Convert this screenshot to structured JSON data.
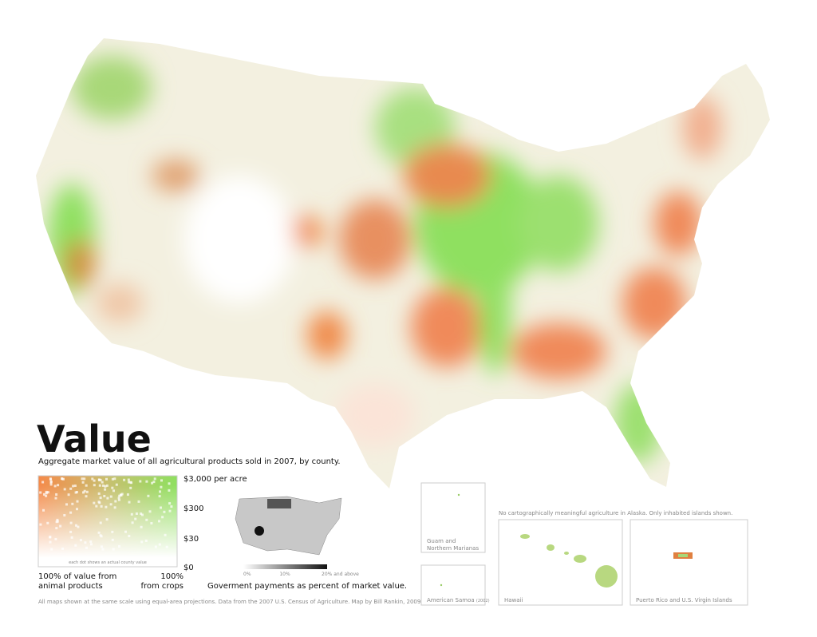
{
  "title": "Value",
  "subtitle": "Aggregate market value of all agricultural products sold in 2007, by county.",
  "legend": {
    "y_labels": [
      "$3,000 per acre",
      "$300",
      "$30",
      "$0"
    ],
    "note": "each dot shows an actual county value",
    "left_label": [
      "100% of value from",
      "animal products"
    ],
    "right_label": [
      "100%",
      "from crops"
    ]
  },
  "payments_map": {
    "scale_labels": [
      "0%",
      "10%",
      "20% and above"
    ],
    "caption": "Goverment payments as percent of market value."
  },
  "territories": {
    "alaska_note": "No cartographically meaningful agriculture in Alaska. Only inhabited islands shown.",
    "guam": [
      "Guam and",
      "Northern Marianas"
    ],
    "samoa": "American Samoa",
    "samoa_year": "(2002)",
    "hawaii": "Hawaii",
    "puerto_rico": "Puerto Rico and U.S. Virgin Islands"
  },
  "footer": "All maps shown at the same scale using equal-area projections. Data from the 2007 U.S. Census of Agriculture. Map by Bill Rankin, 2009"
}
